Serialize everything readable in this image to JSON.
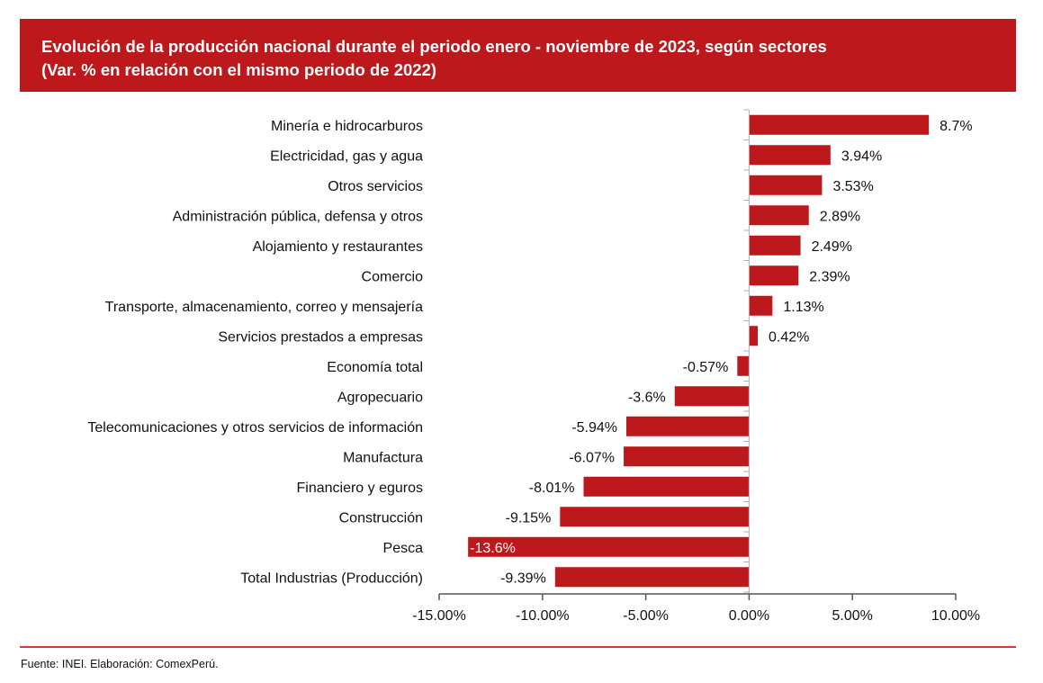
{
  "header": {
    "title_line1": "Evolución de la producción nacional durante el periodo enero - noviembre de 2023, según sectores",
    "title_line2": "(Var. % en relación con el mismo periodo de 2022)"
  },
  "colors": {
    "brand_red": "#bd191c",
    "bar": "#bd191c",
    "footer_line": "#d5393b"
  },
  "footer": {
    "source": "Fuente: INEI. Elaboración: ComexPerú."
  },
  "chart_data": {
    "type": "bar",
    "orientation": "horizontal",
    "title": "Evolución de la producción nacional durante el periodo enero - noviembre de 2023, según sectores",
    "subtitle": "(Var. % en relación con el mismo periodo de 2022)",
    "xlabel": "",
    "ylabel": "",
    "xlim": [
      -15,
      10
    ],
    "x_ticks": [
      -15,
      -10,
      -5,
      0,
      5,
      10
    ],
    "x_tick_labels": [
      "-15.00%",
      "-10.00%",
      "-5.00%",
      "0.00%",
      "5.00%",
      "10.00%"
    ],
    "grid": false,
    "legend": "none",
    "categories": [
      "Minería e hidrocarburos",
      "Electricidad, gas y agua",
      "Otros servicios",
      "Administración pública, defensa y otros",
      "Alojamiento y restaurantes",
      "Comercio",
      "Transporte, almacenamiento, correo y mensajería",
      "Servicios prestados a empresas",
      "Economía total",
      "Agropecuario",
      "Telecomunicaciones y otros servicios de información",
      "Manufactura",
      "Financiero y eguros",
      "Construcción",
      "Pesca",
      "Total Industrias (Producción)"
    ],
    "values": [
      8.7,
      3.94,
      3.53,
      2.89,
      2.49,
      2.39,
      1.13,
      0.42,
      -0.57,
      -3.6,
      -5.94,
      -6.07,
      -8.01,
      -9.15,
      -13.6,
      -9.39
    ],
    "data_labels": [
      "8.7%",
      "3.94%",
      "3.53%",
      "2.89%",
      "2.49%",
      "2.39%",
      "1.13%",
      "0.42%",
      "-0.57%",
      "-3.6%",
      "-5.94%",
      "-6.07%",
      "-8.01%",
      "-9.15%",
      "-13.6%",
      "-9.39%"
    ],
    "label_inside": [
      false,
      false,
      false,
      false,
      false,
      false,
      false,
      false,
      false,
      false,
      false,
      false,
      false,
      false,
      true,
      false
    ],
    "source": "Fuente: INEI. Elaboración: ComexPerú."
  }
}
